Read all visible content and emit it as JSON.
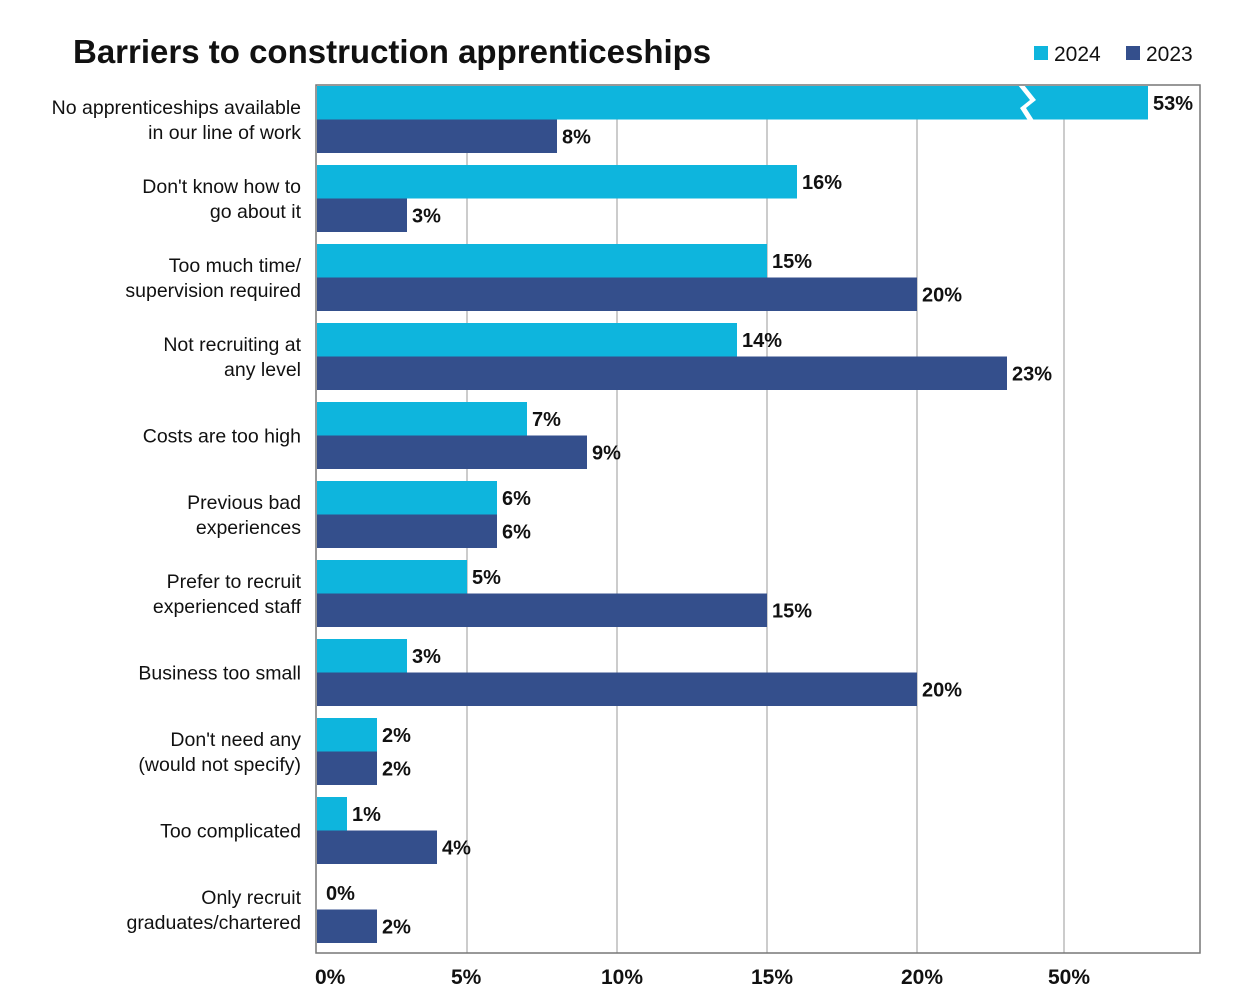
{
  "chart_data": {
    "type": "bar",
    "orientation": "horizontal",
    "title": "Barriers to construction apprenticeships",
    "categories": [
      [
        "No apprenticeships available",
        "in our line of work"
      ],
      [
        "Don't know how to",
        "go about it"
      ],
      [
        "Too much time/",
        "supervision required"
      ],
      [
        "Not recruiting at",
        "any level"
      ],
      [
        "Costs are too high"
      ],
      [
        "Previous bad",
        "experiences"
      ],
      [
        "Prefer to recruit",
        "experienced staff"
      ],
      [
        "Business too small"
      ],
      [
        "Don't need any",
        "(would not specify)"
      ],
      [
        "Too complicated"
      ],
      [
        "Only recruit",
        "graduates/chartered"
      ]
    ],
    "series": [
      {
        "name": "2024",
        "color": "#0eb5dd",
        "values": [
          53,
          16,
          15,
          14,
          7,
          6,
          5,
          3,
          2,
          1,
          0
        ]
      },
      {
        "name": "2023",
        "color": "#344f8c",
        "values": [
          8,
          3,
          20,
          23,
          9,
          6,
          15,
          20,
          2,
          4,
          2
        ]
      }
    ],
    "xticks": [
      "0%",
      "5%",
      "10%",
      "15%",
      "20%",
      "50%"
    ],
    "xtick_values": [
      0,
      5,
      10,
      15,
      20,
      50
    ],
    "axis_break": "between 20% and 50%",
    "value_suffix": "%",
    "legend_position": "top-right",
    "grid": "vertical"
  }
}
